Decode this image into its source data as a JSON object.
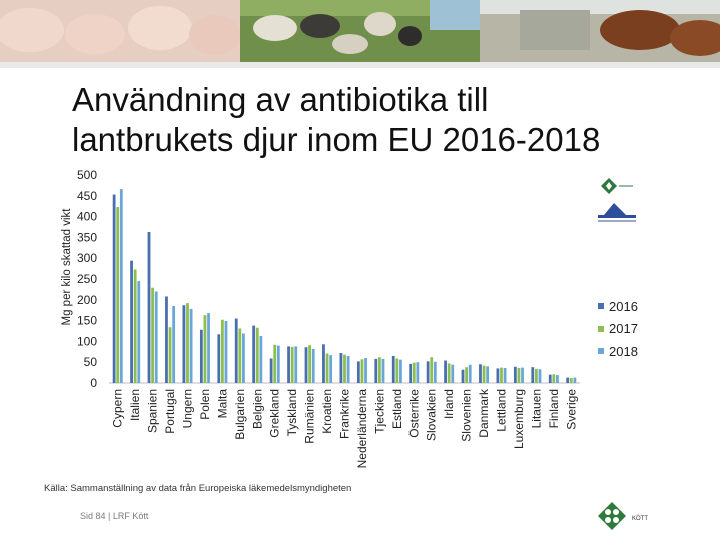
{
  "header": {
    "title_line1": "Användning av antibiotika till",
    "title_line2": "lantbrukets djur inom EU 2016-2018"
  },
  "source_note": "Källa: Sammanställning av data från Europeiska läkemedelsmyndigheten",
  "footer": "Sid 84 | LRF Kött",
  "logos": {
    "bottom_text": "KÖTT"
  },
  "chart_data": {
    "type": "bar",
    "title": "",
    "ylabel": "Mg per kilo skattad vikt",
    "xlabel": "",
    "ylim": [
      0,
      500
    ],
    "yticks": [
      0,
      50,
      100,
      150,
      200,
      250,
      300,
      350,
      400,
      450,
      500
    ],
    "grid": false,
    "legend_position": "right",
    "categories": [
      "Cypern",
      "Italien",
      "Spanien",
      "Portugal",
      "Ungern",
      "Polen",
      "Malta",
      "Bulgarien",
      "Belgien",
      "Grekland",
      "Tyskland",
      "Rumänien",
      "Kroatien",
      "Frankrike",
      "Nederländerna",
      "Tjeckien",
      "Estland",
      "Österrike",
      "Slovakien",
      "Irland",
      "Slovenien",
      "Danmark",
      "Lettland",
      "Luxemburg",
      "Litauen",
      "Finland",
      "Sverige"
    ],
    "series": [
      {
        "name": "2016",
        "color": "#4a6fae",
        "values": [
          453,
          294,
          363,
          208,
          187,
          128,
          117,
          155,
          138,
          59,
          88,
          86,
          93,
          72,
          52,
          58,
          65,
          46,
          52,
          54,
          32,
          45,
          35,
          39,
          38,
          20,
          13
        ]
      },
      {
        "name": "2017",
        "color": "#8dbf4e",
        "values": [
          423,
          273,
          229,
          134,
          192,
          163,
          152,
          131,
          133,
          92,
          87,
          91,
          71,
          68,
          57,
          62,
          59,
          49,
          62,
          47,
          38,
          42,
          37,
          36,
          34,
          21,
          12
        ]
      },
      {
        "name": "2018",
        "color": "#6aa7d8",
        "values": [
          466,
          245,
          220,
          185,
          178,
          168,
          149,
          119,
          113,
          90,
          88,
          82,
          67,
          65,
          60,
          58,
          56,
          50,
          51,
          44,
          44,
          40,
          36,
          37,
          33,
          19,
          13
        ]
      }
    ]
  }
}
